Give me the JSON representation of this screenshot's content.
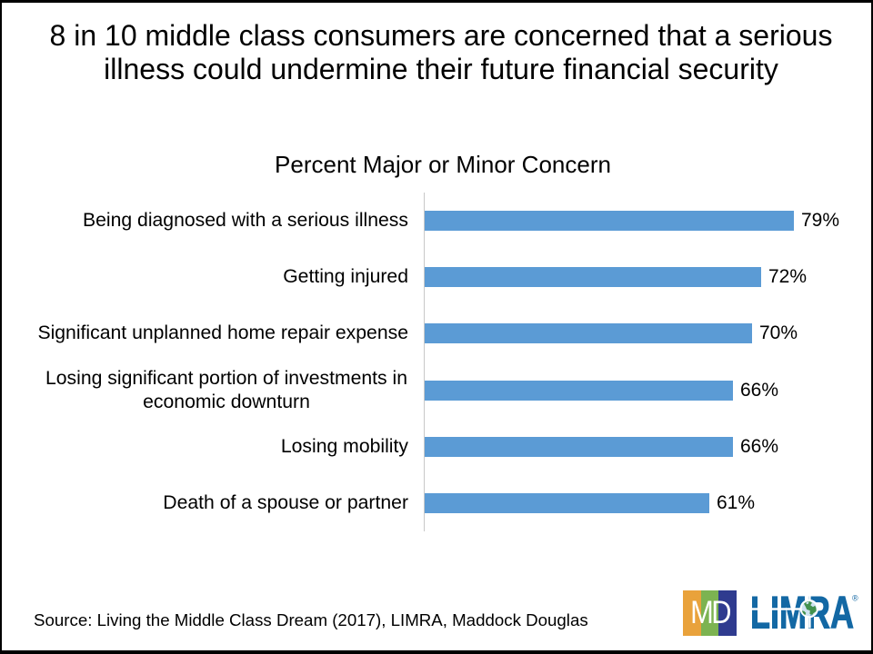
{
  "slide": {
    "title": {
      "line1": "8 in 10 middle class consumers are concerned that a serious",
      "line2": "illness could undermine their future financial security"
    }
  },
  "chart_data": {
    "type": "bar",
    "orientation": "horizontal",
    "title": "Percent Major or Minor Concern",
    "categories": [
      "Being diagnosed with a serious illness",
      "Getting injured",
      "Significant unplanned home repair expense",
      "Losing significant portion of investments in economic downturn",
      "Losing mobility",
      "Death of a spouse or partner"
    ],
    "values": [
      79,
      72,
      70,
      66,
      66,
      61
    ],
    "data_labels": [
      "79%",
      "72%",
      "70%",
      "66%",
      "66%",
      "61%"
    ],
    "value_suffix": "%",
    "xlim": [
      0,
      100
    ],
    "grid": false,
    "legend": false,
    "bar_color": "#5b9bd5",
    "axis_color": "#c8c8c8",
    "label_color": "#000000"
  },
  "footer": {
    "source": "Source: Living the Middle Class Dream (2017), LIMRA, Maddock Douglas",
    "md_logo": {
      "label": "MD",
      "stripe_colors": [
        "#e9a23b",
        "#7cb351",
        "#2f3b8f"
      ]
    },
    "limra_logo": {
      "label": "LIMRA",
      "trademark": "®",
      "color": "#1368a4"
    }
  }
}
